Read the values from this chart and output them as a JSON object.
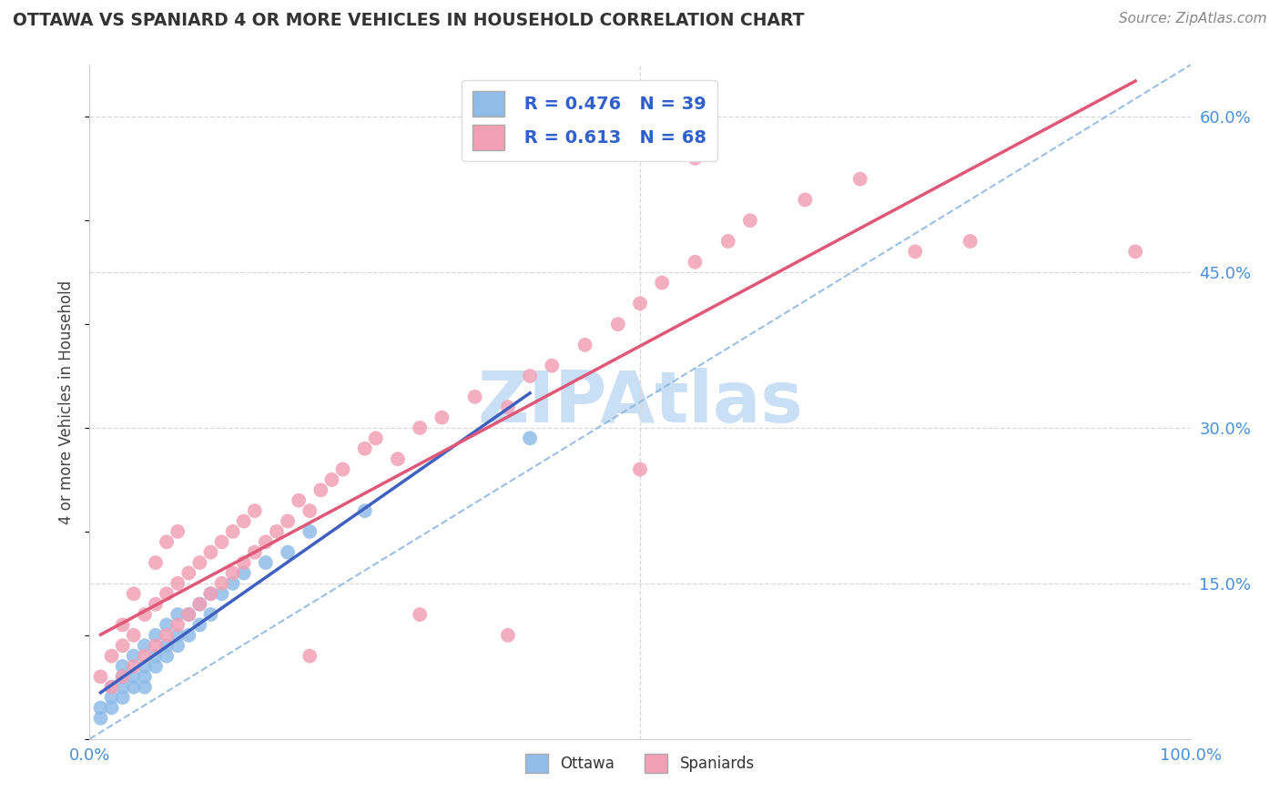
{
  "title": "OTTAWA VS SPANIARD 4 OR MORE VEHICLES IN HOUSEHOLD CORRELATION CHART",
  "source": "Source: ZipAtlas.com",
  "ylabel": "4 or more Vehicles in Household",
  "xlim": [
    0.0,
    1.0
  ],
  "ylim": [
    0.0,
    0.65
  ],
  "ottawa_R": 0.476,
  "ottawa_N": 39,
  "spaniard_R": 0.613,
  "spaniard_N": 68,
  "ottawa_color": "#90bce8",
  "spaniard_color": "#f2a0b5",
  "ottawa_line_color": "#4060c0",
  "spaniard_line_color": "#e05878",
  "dashed_line_color": "#90b8e0",
  "grid_color": "#d8d8d8",
  "background_color": "#ffffff",
  "watermark_color": "#c8dff5",
  "ottawa_x": [
    0.01,
    0.01,
    0.02,
    0.02,
    0.02,
    0.03,
    0.03,
    0.03,
    0.03,
    0.04,
    0.04,
    0.04,
    0.05,
    0.05,
    0.05,
    0.05,
    0.06,
    0.06,
    0.06,
    0.07,
    0.07,
    0.07,
    0.08,
    0.08,
    0.08,
    0.09,
    0.09,
    0.1,
    0.1,
    0.11,
    0.11,
    0.12,
    0.13,
    0.14,
    0.16,
    0.18,
    0.2,
    0.25,
    0.4
  ],
  "ottawa_y": [
    0.02,
    0.03,
    0.03,
    0.04,
    0.05,
    0.04,
    0.05,
    0.06,
    0.07,
    0.05,
    0.06,
    0.08,
    0.05,
    0.06,
    0.07,
    0.09,
    0.07,
    0.08,
    0.1,
    0.08,
    0.09,
    0.11,
    0.09,
    0.1,
    0.12,
    0.1,
    0.12,
    0.11,
    0.13,
    0.12,
    0.14,
    0.14,
    0.15,
    0.16,
    0.17,
    0.18,
    0.2,
    0.22,
    0.29
  ],
  "spaniard_x": [
    0.01,
    0.02,
    0.02,
    0.03,
    0.03,
    0.03,
    0.04,
    0.04,
    0.04,
    0.05,
    0.05,
    0.06,
    0.06,
    0.06,
    0.07,
    0.07,
    0.07,
    0.08,
    0.08,
    0.08,
    0.09,
    0.09,
    0.1,
    0.1,
    0.11,
    0.11,
    0.12,
    0.12,
    0.13,
    0.13,
    0.14,
    0.14,
    0.15,
    0.15,
    0.16,
    0.17,
    0.18,
    0.19,
    0.2,
    0.21,
    0.22,
    0.23,
    0.25,
    0.26,
    0.28,
    0.3,
    0.32,
    0.35,
    0.38,
    0.4,
    0.42,
    0.45,
    0.48,
    0.5,
    0.52,
    0.55,
    0.58,
    0.6,
    0.65,
    0.7,
    0.38,
    0.5,
    0.55,
    0.75,
    0.8,
    0.95,
    0.2,
    0.3
  ],
  "spaniard_y": [
    0.06,
    0.05,
    0.08,
    0.06,
    0.09,
    0.11,
    0.07,
    0.1,
    0.14,
    0.08,
    0.12,
    0.09,
    0.13,
    0.17,
    0.1,
    0.14,
    0.19,
    0.11,
    0.15,
    0.2,
    0.12,
    0.16,
    0.13,
    0.17,
    0.14,
    0.18,
    0.15,
    0.19,
    0.16,
    0.2,
    0.17,
    0.21,
    0.18,
    0.22,
    0.19,
    0.2,
    0.21,
    0.23,
    0.22,
    0.24,
    0.25,
    0.26,
    0.28,
    0.29,
    0.27,
    0.3,
    0.31,
    0.33,
    0.32,
    0.35,
    0.36,
    0.38,
    0.4,
    0.42,
    0.44,
    0.46,
    0.48,
    0.5,
    0.52,
    0.54,
    0.1,
    0.26,
    0.56,
    0.47,
    0.48,
    0.47,
    0.08,
    0.12
  ]
}
